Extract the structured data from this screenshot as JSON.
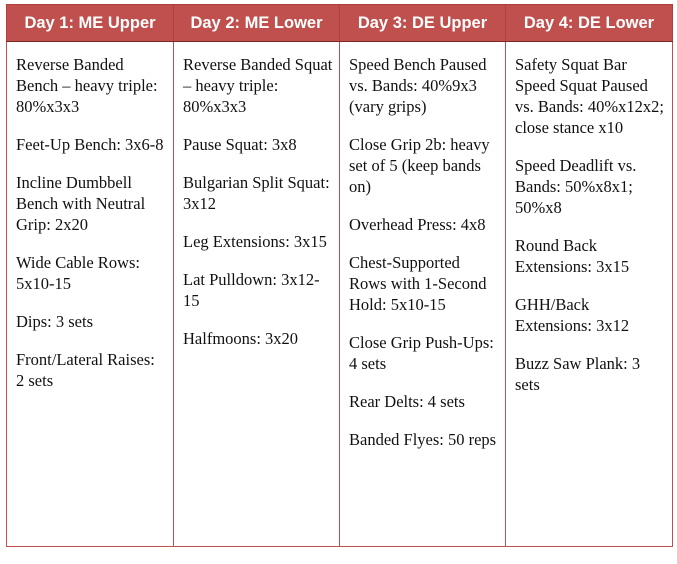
{
  "headers": [
    "Day 1: ME Upper",
    "Day 2: ME Lower",
    "Day 3: DE Upper",
    "Day 4: DE Lower"
  ],
  "days": [
    {
      "exercises": [
        "Reverse Banded Bench – heavy triple: 80%x3x3",
        "Feet-Up Bench: 3x6-8",
        "Incline Dumbbell Bench with Neutral Grip: 2x20",
        "Wide Cable Rows: 5x10-15",
        "Dips: 3 sets",
        "Front/Lateral Raises: 2 sets"
      ]
    },
    {
      "exercises": [
        "Reverse Banded Squat – heavy triple: 80%x3x3",
        "Pause Squat: 3x8",
        "Bulgarian Split Squat: 3x12",
        "Leg Extensions: 3x15",
        "Lat Pulldown: 3x12-15",
        "Halfmoons: 3x20"
      ]
    },
    {
      "exercises": [
        "Speed Bench Paused vs. Bands: 40%9x3 (vary grips)",
        "Close Grip 2b: heavy set of 5 (keep bands on)",
        "Overhead Press: 4x8",
        "Chest-Supported Rows with 1-Second Hold: 5x10-15",
        "Close Grip Push-Ups: 4 sets",
        "Rear Delts: 4 sets",
        "Banded Flyes: 50 reps"
      ]
    },
    {
      "exercises": [
        "Safety Squat Bar Speed Squat Paused vs. Bands: 40%x12x2; close stance x10",
        "Speed Deadlift vs. Bands: 50%x8x1; 50%x8",
        "Round Back Extensions: 3x15",
        "GHH/Back Extensions: 3x12",
        "Buzz Saw Plank: 3 sets"
      ]
    }
  ]
}
